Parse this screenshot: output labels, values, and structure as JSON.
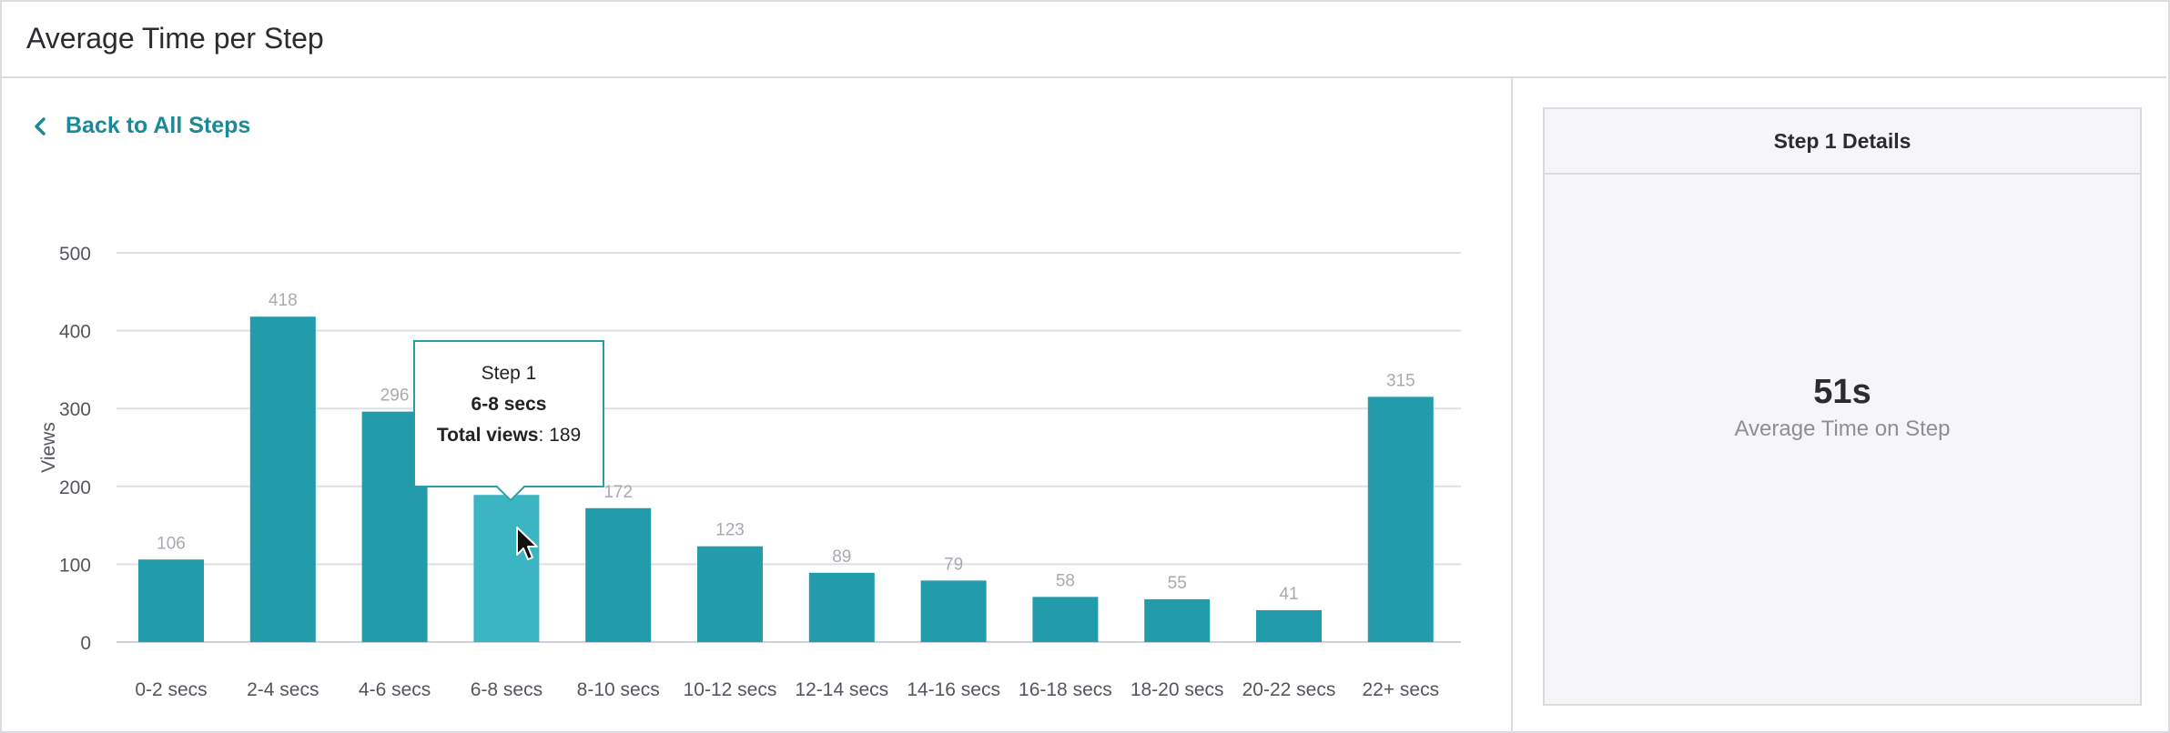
{
  "header": {
    "title": "Average Time per Step"
  },
  "back_link": {
    "label": "Back to All Steps",
    "icon": "chevron-left-icon"
  },
  "tooltip": {
    "title": "Step 1",
    "category": "6-8 secs",
    "views_label": "Total views",
    "views_value": ": 189"
  },
  "details": {
    "heading": "Step 1 Details",
    "metric_value": "51s",
    "metric_label": "Average Time on Step"
  },
  "colors": {
    "bar": "#229caa",
    "bar_highlight": "#3bb5c2",
    "accent": "#1a8a96"
  },
  "chart_data": {
    "type": "bar",
    "categories": [
      "0-2 secs",
      "2-4 secs",
      "4-6 secs",
      "6-8 secs",
      "8-10 secs",
      "10-12 secs",
      "12-14 secs",
      "14-16 secs",
      "16-18 secs",
      "18-20 secs",
      "20-22 secs",
      "22+ secs"
    ],
    "values": [
      106,
      418,
      296,
      189,
      172,
      123,
      89,
      79,
      58,
      55,
      41,
      315
    ],
    "data_labels": [
      "106",
      "418",
      "296",
      "",
      "172",
      "123",
      "89",
      "79",
      "58",
      "55",
      "41",
      "315"
    ],
    "highlighted_index": 3,
    "ylabel": "Views",
    "xlabel": "",
    "yticks": [
      0,
      100,
      200,
      300,
      400,
      500
    ],
    "ylim": [
      0,
      500
    ],
    "grid": true
  }
}
